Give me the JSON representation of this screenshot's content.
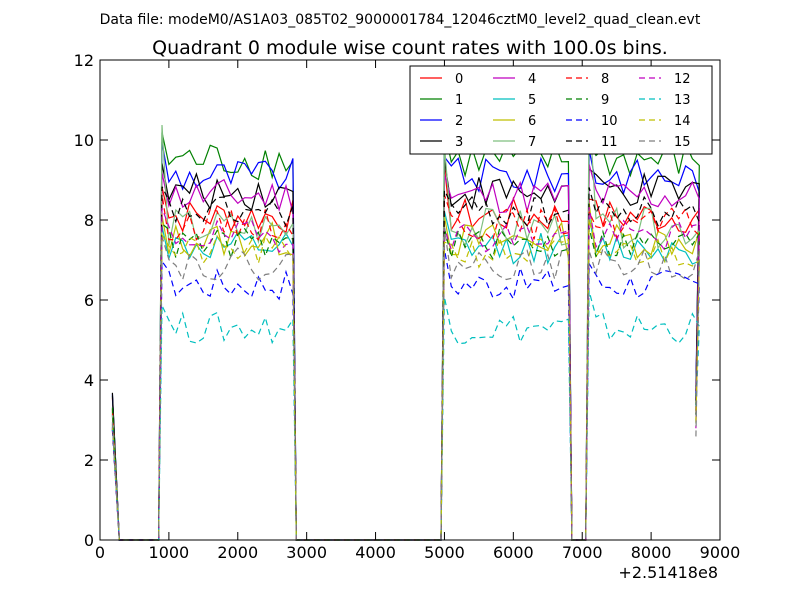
{
  "header": {
    "datafile": "Data file: modeM0/AS1A03_085T02_9000001784_12046cztM0_level2_quad_clean.evt"
  },
  "chart_data": {
    "type": "line",
    "title": "Quadrant 0 module wise count rates with 100.0s bins.",
    "xlabel": "",
    "ylabel": "",
    "x_offset_label": "+2.51418e8",
    "xlim": [
      0,
      9000
    ],
    "ylim": [
      0,
      12
    ],
    "xticks": [
      0,
      1000,
      2000,
      3000,
      4000,
      5000,
      6000,
      7000,
      8000,
      9000
    ],
    "yticks": [
      0,
      2,
      4,
      6,
      8,
      10,
      12
    ],
    "legend_position": "top-right",
    "legend_columns": 4,
    "series": [
      {
        "name": "0",
        "color": "#ff0000",
        "dashed": false,
        "level": 8.1,
        "pk": 8.9,
        "v": 0.9
      },
      {
        "name": "1",
        "color": "#008000",
        "dashed": false,
        "level": 9.5,
        "pk": 10.2,
        "v": 1.0
      },
      {
        "name": "2",
        "color": "#0000ff",
        "dashed": false,
        "level": 9.1,
        "pk": 9.9,
        "v": 0.9
      },
      {
        "name": "3",
        "color": "#000000",
        "dashed": false,
        "level": 8.7,
        "pk": 9.3,
        "v": 0.9
      },
      {
        "name": "4",
        "color": "#bf00bf",
        "dashed": false,
        "level": 8.6,
        "pk": 9.3,
        "v": 0.9
      },
      {
        "name": "5",
        "color": "#00bfbf",
        "dashed": false,
        "level": 7.3,
        "pk": 7.9,
        "v": 0.8
      },
      {
        "name": "6",
        "color": "#bfbf00",
        "dashed": false,
        "level": 7.5,
        "pk": 8.1,
        "v": 0.9
      },
      {
        "name": "7",
        "color": "#7fbf7f",
        "dashed": false,
        "level": 7.8,
        "pk": 10.3,
        "v": 1.0
      },
      {
        "name": "8",
        "color": "#ff0000",
        "dashed": true,
        "level": 7.9,
        "pk": 8.5,
        "v": 0.8
      },
      {
        "name": "9",
        "color": "#008000",
        "dashed": true,
        "level": 7.4,
        "pk": 8.0,
        "v": 0.8
      },
      {
        "name": "10",
        "color": "#0000ff",
        "dashed": true,
        "level": 6.4,
        "pk": 7.0,
        "v": 0.8
      },
      {
        "name": "11",
        "color": "#000000",
        "dashed": true,
        "level": 8.2,
        "pk": 8.8,
        "v": 0.8
      },
      {
        "name": "12",
        "color": "#bf00bf",
        "dashed": true,
        "level": 7.6,
        "pk": 8.2,
        "v": 0.8
      },
      {
        "name": "13",
        "color": "#00bfbf",
        "dashed": true,
        "level": 5.3,
        "pk": 6.0,
        "v": 0.8
      },
      {
        "name": "14",
        "color": "#bfbf00",
        "dashed": true,
        "level": 7.2,
        "pk": 7.7,
        "v": 0.8
      },
      {
        "name": "15",
        "color": "#7f7f7f",
        "dashed": true,
        "level": 6.9,
        "pk": 7.6,
        "v": 0.8
      }
    ],
    "active_segments": [
      {
        "start": 900,
        "end": 2800
      },
      {
        "start": 5000,
        "end": 6800
      },
      {
        "start": 7100,
        "end": 8650
      }
    ],
    "initial_points": [
      [
        180,
        "spike"
      ],
      [
        280,
        0
      ]
    ]
  }
}
